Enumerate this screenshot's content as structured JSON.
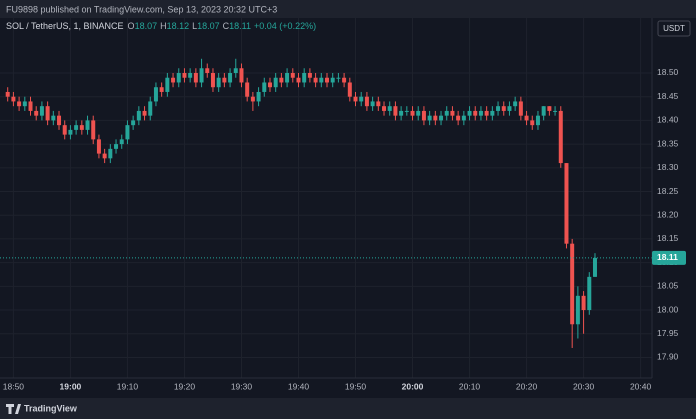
{
  "header": {
    "published": "FU9898 published on TradingView.com, Sep 13, 2023 20:32 UTC+3",
    "brand": "TradingView"
  },
  "chart_data": {
    "type": "candlestick",
    "legend": {
      "symbol": "SOL / TetherUS, 1, BINANCE",
      "fields": [
        {
          "label": "O",
          "value": 18.07
        },
        {
          "label": "H",
          "value": 18.12
        },
        {
          "label": "L",
          "value": 18.07
        },
        {
          "label": "C",
          "value": 18.11
        }
      ],
      "change": "+0.04 (+0.22%)"
    },
    "currency": "USDT",
    "up_color": "#26a69a",
    "down_color": "#ef5350",
    "grid": true,
    "x": [
      "18:49",
      "18:50",
      "18:51",
      "18:52",
      "18:53",
      "18:54",
      "18:55",
      "18:56",
      "18:57",
      "18:58",
      "18:59",
      "19:00",
      "19:01",
      "19:02",
      "19:03",
      "19:04",
      "19:05",
      "19:06",
      "19:07",
      "19:08",
      "19:09",
      "19:10",
      "19:11",
      "19:12",
      "19:13",
      "19:14",
      "19:15",
      "19:16",
      "19:17",
      "19:18",
      "19:19",
      "19:20",
      "19:21",
      "19:22",
      "19:23",
      "19:24",
      "19:25",
      "19:26",
      "19:27",
      "19:28",
      "19:29",
      "19:30",
      "19:31",
      "19:32",
      "19:33",
      "19:34",
      "19:35",
      "19:36",
      "19:37",
      "19:38",
      "19:39",
      "19:40",
      "19:41",
      "19:42",
      "19:43",
      "19:44",
      "19:45",
      "19:46",
      "19:47",
      "19:48",
      "19:49",
      "19:50",
      "19:51",
      "19:52",
      "19:53",
      "19:54",
      "19:55",
      "19:56",
      "19:57",
      "19:58",
      "19:59",
      "20:00",
      "20:01",
      "20:02",
      "20:03",
      "20:04",
      "20:05",
      "20:06",
      "20:07",
      "20:08",
      "20:09",
      "20:10",
      "20:11",
      "20:12",
      "20:13",
      "20:14",
      "20:15",
      "20:16",
      "20:17",
      "20:18",
      "20:19",
      "20:20",
      "20:21",
      "20:22",
      "20:23",
      "20:24",
      "20:25",
      "20:26",
      "20:27",
      "20:28",
      "20:29",
      "20:30",
      "20:31",
      "20:32"
    ],
    "open": [
      18.46,
      18.45,
      18.44,
      18.43,
      18.44,
      18.42,
      18.41,
      18.43,
      18.4,
      18.41,
      18.39,
      18.37,
      18.38,
      18.39,
      18.38,
      18.4,
      18.36,
      18.33,
      18.32,
      18.34,
      18.35,
      18.36,
      18.39,
      18.4,
      18.42,
      18.41,
      18.44,
      18.47,
      18.46,
      18.49,
      18.48,
      18.5,
      18.49,
      18.5,
      18.48,
      18.51,
      18.5,
      18.47,
      18.49,
      18.48,
      18.5,
      18.51,
      18.48,
      18.45,
      18.44,
      18.46,
      18.48,
      18.47,
      18.49,
      18.48,
      18.5,
      18.49,
      18.48,
      18.5,
      18.49,
      18.48,
      18.49,
      18.48,
      18.49,
      18.49,
      18.48,
      18.45,
      18.44,
      18.45,
      18.43,
      18.44,
      18.43,
      18.42,
      18.43,
      18.41,
      18.42,
      18.42,
      18.41,
      18.42,
      18.4,
      18.41,
      18.4,
      18.41,
      18.42,
      18.41,
      18.4,
      18.41,
      18.42,
      18.41,
      18.42,
      18.41,
      18.42,
      18.43,
      18.42,
      18.43,
      18.44,
      18.41,
      18.4,
      18.39,
      18.41,
      18.43,
      18.42,
      18.42,
      18.31,
      18.14,
      17.97,
      18.03,
      18.0,
      18.07
    ],
    "high": [
      18.47,
      18.46,
      18.45,
      18.45,
      18.45,
      18.43,
      18.44,
      18.44,
      18.42,
      18.42,
      18.4,
      18.39,
      18.4,
      18.4,
      18.41,
      18.41,
      18.37,
      18.34,
      18.35,
      18.36,
      18.37,
      18.4,
      18.41,
      18.43,
      18.43,
      18.45,
      18.48,
      18.48,
      18.5,
      18.5,
      18.51,
      18.51,
      18.51,
      18.51,
      18.53,
      18.52,
      18.51,
      18.5,
      18.5,
      18.51,
      18.53,
      18.52,
      18.49,
      18.46,
      18.47,
      18.49,
      18.49,
      18.5,
      18.5,
      18.51,
      18.51,
      18.5,
      18.51,
      18.51,
      18.5,
      18.5,
      18.5,
      18.5,
      18.5,
      18.5,
      18.49,
      18.46,
      18.46,
      18.46,
      18.45,
      18.45,
      18.44,
      18.44,
      18.44,
      18.43,
      18.43,
      18.43,
      18.43,
      18.43,
      18.42,
      18.42,
      18.42,
      18.43,
      18.43,
      18.42,
      18.42,
      18.43,
      18.43,
      18.43,
      18.43,
      18.43,
      18.44,
      18.44,
      18.44,
      18.45,
      18.45,
      18.42,
      18.41,
      18.42,
      18.43,
      18.43,
      18.43,
      18.43,
      18.31,
      18.15,
      18.05,
      18.04,
      18.08,
      18.12
    ],
    "low": [
      18.44,
      18.43,
      18.42,
      18.42,
      18.41,
      18.4,
      18.4,
      18.39,
      18.39,
      18.38,
      18.36,
      18.36,
      18.37,
      18.37,
      18.37,
      18.35,
      18.32,
      18.31,
      18.31,
      18.33,
      18.34,
      18.35,
      18.38,
      18.39,
      18.4,
      18.4,
      18.43,
      18.45,
      18.45,
      18.47,
      18.47,
      18.48,
      18.48,
      18.47,
      18.47,
      18.49,
      18.46,
      18.46,
      18.47,
      18.47,
      18.49,
      18.47,
      18.44,
      18.42,
      18.43,
      18.45,
      18.46,
      18.46,
      18.47,
      18.47,
      18.48,
      18.47,
      18.47,
      18.48,
      18.47,
      18.47,
      18.47,
      18.47,
      18.48,
      18.47,
      18.44,
      18.43,
      18.43,
      18.42,
      18.42,
      18.42,
      18.41,
      18.41,
      18.4,
      18.4,
      18.41,
      18.4,
      18.4,
      18.39,
      18.39,
      18.39,
      18.39,
      18.4,
      18.4,
      18.39,
      18.39,
      18.4,
      18.4,
      18.4,
      18.4,
      18.4,
      18.41,
      18.41,
      18.41,
      18.42,
      18.4,
      18.39,
      18.38,
      18.38,
      18.4,
      18.41,
      18.41,
      18.3,
      18.13,
      17.92,
      17.94,
      17.95,
      17.99,
      18.07
    ],
    "close": [
      18.45,
      18.44,
      18.43,
      18.44,
      18.42,
      18.41,
      18.43,
      18.4,
      18.41,
      18.39,
      18.37,
      18.38,
      18.39,
      18.38,
      18.4,
      18.36,
      18.33,
      18.32,
      18.34,
      18.35,
      18.36,
      18.39,
      18.4,
      18.42,
      18.41,
      18.44,
      18.47,
      18.46,
      18.49,
      18.48,
      18.5,
      18.49,
      18.5,
      18.48,
      18.51,
      18.5,
      18.47,
      18.49,
      18.48,
      18.5,
      18.51,
      18.48,
      18.45,
      18.44,
      18.46,
      18.48,
      18.47,
      18.49,
      18.48,
      18.5,
      18.49,
      18.48,
      18.5,
      18.49,
      18.48,
      18.49,
      18.48,
      18.49,
      18.49,
      18.48,
      18.45,
      18.44,
      18.45,
      18.43,
      18.44,
      18.43,
      18.42,
      18.43,
      18.41,
      18.42,
      18.42,
      18.41,
      18.42,
      18.4,
      18.41,
      18.4,
      18.41,
      18.42,
      18.41,
      18.4,
      18.41,
      18.42,
      18.41,
      18.42,
      18.41,
      18.42,
      18.43,
      18.42,
      18.43,
      18.44,
      18.41,
      18.4,
      18.39,
      18.41,
      18.43,
      18.42,
      18.42,
      18.31,
      18.14,
      17.97,
      18.03,
      18.0,
      18.07,
      18.11
    ],
    "xlim": [
      "18:48",
      "20:42"
    ],
    "xticks": [
      "18:50",
      "19:00",
      "19:10",
      "19:20",
      "19:30",
      "19:40",
      "19:50",
      "20:00",
      "20:10",
      "20:20",
      "20:30",
      "20:40"
    ],
    "ylim": [
      17.863,
      18.616
    ],
    "yticks": [
      {
        "value": 17.9,
        "label": "17.90"
      },
      17.95,
      {
        "value": 18.0,
        "label": "18.00"
      },
      18.05,
      {
        "value": 18.1,
        "label": "18.10"
      },
      18.15,
      {
        "value": 18.2,
        "label": "18.20"
      },
      18.25,
      {
        "value": 18.3,
        "label": "18.30"
      },
      18.35,
      {
        "value": 18.4,
        "label": "18.40"
      },
      18.45,
      {
        "value": 18.5,
        "label": "18.50"
      }
    ]
  }
}
